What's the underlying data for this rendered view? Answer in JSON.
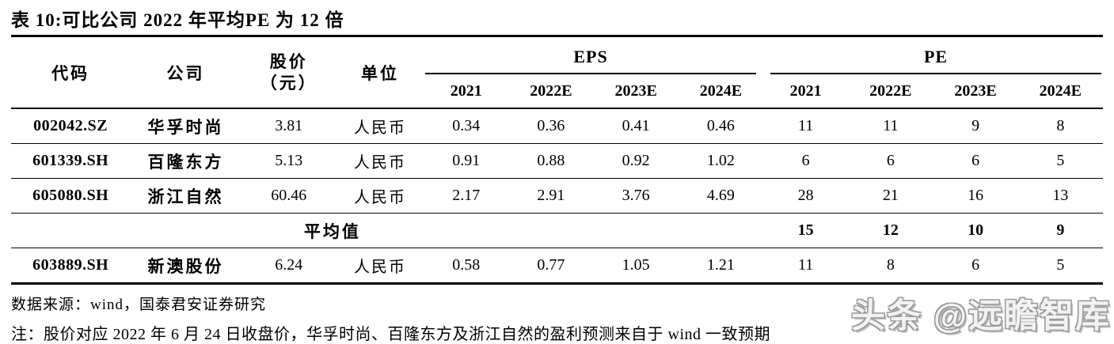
{
  "title": "表 10:可比公司 2022 年平均PE 为 12 倍",
  "table": {
    "headers": {
      "code": "代码",
      "company": "公司",
      "price_l1": "股价",
      "price_l2": "（元）",
      "unit": "单位",
      "eps_group": "EPS",
      "pe_group": "PE",
      "eps_years": [
        "2021",
        "2022E",
        "2023E",
        "2024E"
      ],
      "pe_years": [
        "2021",
        "2022E",
        "2023E",
        "2024E"
      ]
    },
    "rows": [
      {
        "code": "002042.SZ",
        "company": "华孚时尚",
        "price": "3.81",
        "unit": "人民币",
        "eps": [
          "0.34",
          "0.36",
          "0.41",
          "0.46"
        ],
        "pe": [
          "11",
          "11",
          "9",
          "8"
        ]
      },
      {
        "code": "601339.SH",
        "company": "百隆东方",
        "price": "5.13",
        "unit": "人民币",
        "eps": [
          "0.91",
          "0.88",
          "0.92",
          "1.02"
        ],
        "pe": [
          "6",
          "6",
          "6",
          "5"
        ]
      },
      {
        "code": "605080.SH",
        "company": "浙江自然",
        "price": "60.46",
        "unit": "人民币",
        "eps": [
          "2.17",
          "2.91",
          "3.76",
          "4.69"
        ],
        "pe": [
          "28",
          "21",
          "16",
          "13"
        ]
      }
    ],
    "average_row": {
      "label": "平均值",
      "pe": [
        "15",
        "12",
        "10",
        "9"
      ]
    },
    "last_row": {
      "code": "603889.SH",
      "company": "新澳股份",
      "price": "6.24",
      "unit": "人民币",
      "eps": [
        "0.58",
        "0.77",
        "1.05",
        "1.21"
      ],
      "pe": [
        "11",
        "8",
        "6",
        "5"
      ]
    }
  },
  "source": "数据来源：wind，国泰君安证券研究",
  "note": "注：股价对应 2022 年 6 月 24 日收盘价，华孚时尚、百隆东方及浙江自然的盈利预测来自于 wind 一致预期",
  "watermark": "头条 @远瞻智库",
  "colors": {
    "text": "#000000",
    "watermark_outline": "#9b9b9b",
    "background": "#ffffff"
  }
}
